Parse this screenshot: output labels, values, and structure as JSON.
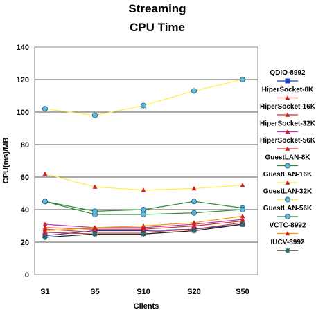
{
  "chart_data": {
    "type": "line",
    "title": "Streaming",
    "subtitle": "CPU Time",
    "xlabel": "Clients",
    "ylabel": "CPU(ms)/MB",
    "categories": [
      "S1",
      "S5",
      "S10",
      "S20",
      "S50"
    ],
    "ylim": [
      0,
      140
    ],
    "yticks": [
      0,
      20,
      40,
      60,
      80,
      100,
      120,
      140
    ],
    "grid": true,
    "legend_position": "right",
    "series": [
      {
        "name": "QDIO-8992",
        "values": [
          24,
          27,
          27,
          28,
          31
        ],
        "color": "#1a3fbf",
        "marker": "square"
      },
      {
        "name": "HiperSocket-8K",
        "values": [
          29,
          28,
          28,
          30,
          33
        ],
        "color": "#cc3333",
        "marker": "triangle"
      },
      {
        "name": "HiperSocket-16K",
        "values": [
          28,
          26,
          26,
          28,
          32
        ],
        "color": "#cc3333",
        "marker": "triangle"
      },
      {
        "name": "HiperSocket-32K",
        "values": [
          31,
          29,
          29,
          31,
          34
        ],
        "color": "#b43cb4",
        "marker": "triangle"
      },
      {
        "name": "HiperSocket-56K",
        "values": [
          26,
          25,
          25,
          27,
          31
        ],
        "color": "#cc3333",
        "marker": "triangle"
      },
      {
        "name": "GuestLAN-8K",
        "values": [
          45,
          39,
          40,
          45,
          41
        ],
        "color": "#2e8b3a",
        "marker": "circle"
      },
      {
        "name": "GuestLAN-16K",
        "values": [
          62,
          54,
          52,
          53,
          55
        ],
        "color": "#ffee44",
        "marker": "triangle"
      },
      {
        "name": "GuestLAN-32K",
        "values": [
          102,
          98,
          104,
          113,
          120
        ],
        "color": "#ffee44",
        "marker": "circle"
      },
      {
        "name": "GuestLAN-56K",
        "values": [
          45,
          37,
          37,
          38,
          40
        ],
        "color": "#2e8b3a",
        "marker": "circle"
      },
      {
        "name": "VCTC-8992",
        "values": [
          27,
          29,
          30,
          32,
          36
        ],
        "color": "#ff9900",
        "marker": "triangle"
      },
      {
        "name": "IUCV-8992",
        "values": [
          23,
          25,
          25,
          27,
          31
        ],
        "color": "#222222",
        "marker": "star"
      }
    ],
    "marker_fill": {
      "circle": "#5fb8d8",
      "triangle": "#cc2222",
      "square": "#1a3fbf",
      "star": "#2a6a6a"
    }
  }
}
